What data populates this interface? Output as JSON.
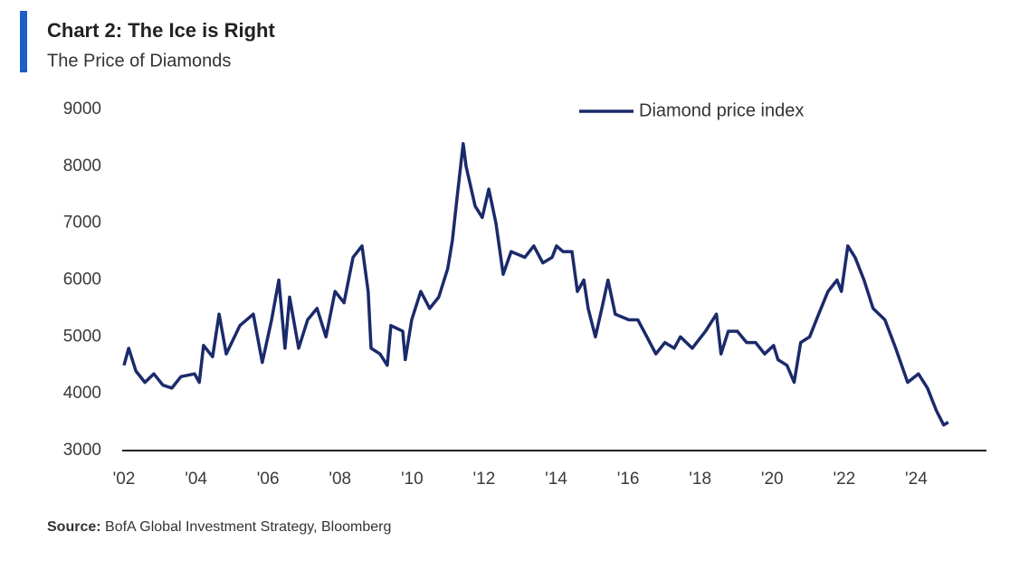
{
  "chart_data": {
    "type": "line",
    "title": "Chart 2: The Ice is Right",
    "subtitle": "The Price of Diamonds",
    "source_label": "Source:",
    "source": "BofA Global Investment Strategy, Bloomberg",
    "xlim": [
      2002,
      2026
    ],
    "ylim": [
      3000,
      9000
    ],
    "xticks": [
      {
        "value": 2002,
        "label": "'02"
      },
      {
        "value": 2004,
        "label": "'04"
      },
      {
        "value": 2006,
        "label": "'06"
      },
      {
        "value": 2008,
        "label": "'08"
      },
      {
        "value": 2010,
        "label": "'10"
      },
      {
        "value": 2012,
        "label": "'12"
      },
      {
        "value": 2014,
        "label": "'14"
      },
      {
        "value": 2016,
        "label": "'16"
      },
      {
        "value": 2018,
        "label": "'18"
      },
      {
        "value": 2020,
        "label": "'20"
      },
      {
        "value": 2022,
        "label": "'22"
      },
      {
        "value": 2024,
        "label": "'24"
      }
    ],
    "yticks": [
      3000,
      4000,
      5000,
      6000,
      7000,
      8000,
      9000
    ],
    "grid": false,
    "legend": "top-right",
    "x": [
      2002.0,
      2002.13,
      2002.33,
      2002.58,
      2002.83,
      2003.08,
      2003.33,
      2003.58,
      2003.96,
      2004.09,
      2004.21,
      2004.46,
      2004.64,
      2004.84,
      2005.22,
      2005.59,
      2005.84,
      2006.1,
      2006.3,
      2006.47,
      2006.6,
      2006.85,
      2007.1,
      2007.36,
      2007.61,
      2007.86,
      2008.11,
      2008.36,
      2008.61,
      2008.78,
      2008.86,
      2009.11,
      2009.31,
      2009.41,
      2009.74,
      2009.81,
      2009.99,
      2010.24,
      2010.49,
      2010.74,
      2010.99,
      2011.12,
      2011.24,
      2011.42,
      2011.5,
      2011.75,
      2011.95,
      2012.13,
      2012.33,
      2012.53,
      2012.75,
      2013.13,
      2013.38,
      2013.63,
      2013.89,
      2014.01,
      2014.19,
      2014.44,
      2014.59,
      2014.77,
      2014.89,
      2015.09,
      2015.27,
      2015.44,
      2015.64,
      2016.02,
      2016.27,
      2016.52,
      2016.77,
      2017.02,
      2017.28,
      2017.45,
      2017.78,
      2018.15,
      2018.45,
      2018.58,
      2018.78,
      2019.03,
      2019.29,
      2019.54,
      2019.79,
      2020.04,
      2020.16,
      2020.41,
      2020.61,
      2020.79,
      2021.04,
      2021.29,
      2021.55,
      2021.8,
      2021.92,
      2022.1,
      2022.3,
      2022.55,
      2022.8,
      2023.13,
      2023.43,
      2023.76,
      2024.06,
      2024.31,
      2024.56,
      2024.76,
      2024.89
    ],
    "series": [
      {
        "name": "Diamond price index",
        "color": "#1b2a6b",
        "values": [
          4500,
          4800,
          4400,
          4200,
          4350,
          4150,
          4100,
          4300,
          4350,
          4200,
          4850,
          4650,
          5400,
          4700,
          5200,
          5400,
          4550,
          5300,
          6000,
          4800,
          5700,
          4800,
          5300,
          5500,
          5000,
          5800,
          5600,
          6400,
          6600,
          5800,
          4800,
          4700,
          4500,
          5200,
          5100,
          4600,
          5300,
          5800,
          5500,
          5700,
          6200,
          6700,
          7400,
          8400,
          8000,
          7300,
          7100,
          7600,
          7000,
          6100,
          6500,
          6400,
          6600,
          6300,
          6400,
          6600,
          6500,
          6500,
          5800,
          6000,
          5500,
          5000,
          5500,
          6000,
          5400,
          5300,
          5300,
          5000,
          4700,
          4900,
          4800,
          5000,
          4800,
          5100,
          5400,
          4700,
          5100,
          5100,
          4900,
          4900,
          4700,
          4850,
          4600,
          4500,
          4200,
          4900,
          5000,
          5400,
          5800,
          6000,
          5800,
          6600,
          6400,
          6000,
          5500,
          5300,
          4800,
          4200,
          4350,
          4100,
          3700,
          3450,
          3500
        ]
      }
    ]
  }
}
